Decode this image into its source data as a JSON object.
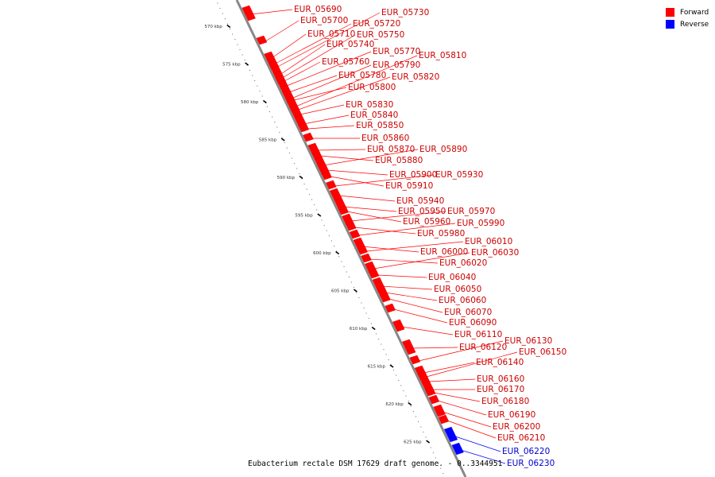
{
  "legend": [
    {
      "label": "Forward",
      "color": "#ff0000"
    },
    {
      "label": "Reverse",
      "color": "#0000ff"
    }
  ],
  "caption": "Eubacterium rectale DSM 17629 draft genome. - 0..3344951",
  "axis_unit": "kbp",
  "ticks": [
    570,
    575,
    580,
    585,
    590,
    595,
    600,
    605,
    610,
    615,
    620,
    625
  ],
  "forward_color": "#ff0000",
  "reverse_color": "#0000ff",
  "genes": [
    {
      "name": "EUR_05690",
      "strand": "forward"
    },
    {
      "name": "EUR_05700",
      "strand": "forward"
    },
    {
      "name": "EUR_05710",
      "strand": "forward"
    },
    {
      "name": "EUR_05720",
      "strand": "forward"
    },
    {
      "name": "EUR_05730",
      "strand": "forward"
    },
    {
      "name": "EUR_05740",
      "strand": "forward"
    },
    {
      "name": "EUR_05750",
      "strand": "forward"
    },
    {
      "name": "EUR_05760",
      "strand": "forward"
    },
    {
      "name": "EUR_05770",
      "strand": "forward"
    },
    {
      "name": "EUR_05780",
      "strand": "forward"
    },
    {
      "name": "EUR_05790",
      "strand": "forward"
    },
    {
      "name": "EUR_05800",
      "strand": "forward"
    },
    {
      "name": "EUR_05810",
      "strand": "forward"
    },
    {
      "name": "EUR_05820",
      "strand": "forward"
    },
    {
      "name": "EUR_05830",
      "strand": "forward"
    },
    {
      "name": "EUR_05840",
      "strand": "forward"
    },
    {
      "name": "EUR_05850",
      "strand": "forward"
    },
    {
      "name": "EUR_05860",
      "strand": "forward"
    },
    {
      "name": "EUR_05870",
      "strand": "forward"
    },
    {
      "name": "EUR_05880",
      "strand": "forward"
    },
    {
      "name": "EUR_05890",
      "strand": "forward"
    },
    {
      "name": "EUR_05900",
      "strand": "forward"
    },
    {
      "name": "EUR_05910",
      "strand": "forward"
    },
    {
      "name": "EUR_05930",
      "strand": "forward"
    },
    {
      "name": "EUR_05940",
      "strand": "forward"
    },
    {
      "name": "EUR_05950",
      "strand": "forward"
    },
    {
      "name": "EUR_05960",
      "strand": "forward"
    },
    {
      "name": "EUR_05970",
      "strand": "forward"
    },
    {
      "name": "EUR_05980",
      "strand": "forward"
    },
    {
      "name": "EUR_05990",
      "strand": "forward"
    },
    {
      "name": "EUR_06000",
      "strand": "forward"
    },
    {
      "name": "EUR_06010",
      "strand": "forward"
    },
    {
      "name": "EUR_06020",
      "strand": "forward"
    },
    {
      "name": "EUR_06030",
      "strand": "forward"
    },
    {
      "name": "EUR_06040",
      "strand": "forward"
    },
    {
      "name": "EUR_06050",
      "strand": "forward"
    },
    {
      "name": "EUR_06060",
      "strand": "forward"
    },
    {
      "name": "EUR_06070",
      "strand": "forward"
    },
    {
      "name": "EUR_06090",
      "strand": "forward"
    },
    {
      "name": "EUR_06110",
      "strand": "forward"
    },
    {
      "name": "EUR_06120",
      "strand": "forward"
    },
    {
      "name": "EUR_06130",
      "strand": "forward"
    },
    {
      "name": "EUR_06140",
      "strand": "forward"
    },
    {
      "name": "EUR_06150",
      "strand": "forward"
    },
    {
      "name": "EUR_06160",
      "strand": "forward"
    },
    {
      "name": "EUR_06170",
      "strand": "forward"
    },
    {
      "name": "EUR_06180",
      "strand": "forward"
    },
    {
      "name": "EUR_06190",
      "strand": "forward"
    },
    {
      "name": "EUR_06200",
      "strand": "forward"
    },
    {
      "name": "EUR_06210",
      "strand": "forward"
    },
    {
      "name": "EUR_06220",
      "strand": "reverse"
    },
    {
      "name": "EUR_06230",
      "strand": "reverse"
    }
  ]
}
